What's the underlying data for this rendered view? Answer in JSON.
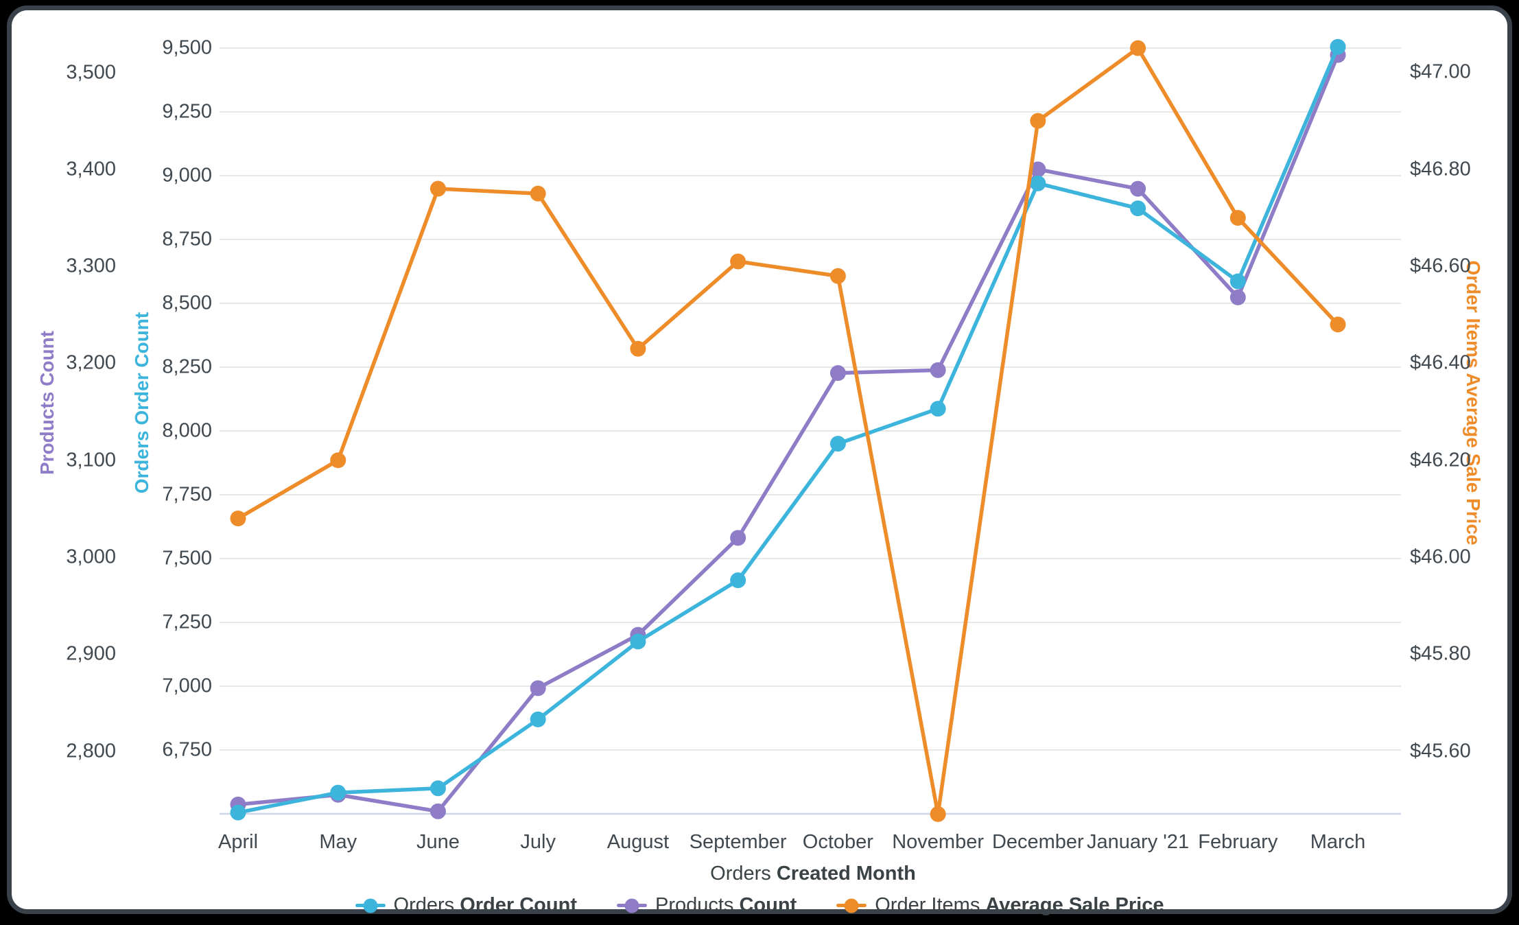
{
  "chart_data": {
    "type": "line",
    "grid": true,
    "legend_position": "bottom",
    "x": {
      "title_prefix": "Orders ",
      "title_bold": "Created Month",
      "categories": [
        "April",
        "May",
        "June",
        "July",
        "August",
        "September",
        "October",
        "November",
        "December",
        "January '21",
        "February",
        "March"
      ]
    },
    "axes": {
      "products": {
        "id": "products",
        "side": "left-outer",
        "title": "Products Count",
        "color": "#8F7CC7",
        "min": 2735.4,
        "max": 3541.4,
        "ticks": [
          {
            "label": "3,500",
            "value": 3500
          },
          {
            "label": "3,400",
            "value": 3400
          },
          {
            "label": "3,300",
            "value": 3300
          },
          {
            "label": "3,200",
            "value": 3200
          },
          {
            "label": "3,100",
            "value": 3100
          },
          {
            "label": "3,000",
            "value": 3000
          },
          {
            "label": "2,900",
            "value": 2900
          },
          {
            "label": "2,800",
            "value": 2800
          }
        ]
      },
      "orders": {
        "id": "orders",
        "side": "left-inner",
        "title": "Orders Order Count",
        "color": "#3CB4DC",
        "min": 6500,
        "max": 9562,
        "gridlines": true,
        "ticks": [
          {
            "label": "9,500",
            "value": 9500
          },
          {
            "label": "9,250",
            "value": 9250
          },
          {
            "label": "9,000",
            "value": 9000
          },
          {
            "label": "8,750",
            "value": 8750
          },
          {
            "label": "8,500",
            "value": 8500
          },
          {
            "label": "8,250",
            "value": 8250
          },
          {
            "label": "8,000",
            "value": 8000
          },
          {
            "label": "7,750",
            "value": 7750
          },
          {
            "label": "7,500",
            "value": 7500
          },
          {
            "label": "7,250",
            "value": 7250
          },
          {
            "label": "7,000",
            "value": 7000
          },
          {
            "label": "6,750",
            "value": 6750
          }
        ]
      },
      "price": {
        "id": "price",
        "side": "right",
        "title": "Order Items Average Sale Price",
        "color": "#EF8C2A",
        "min": 45.4706,
        "max": 47.0828,
        "ticks": [
          {
            "label": "$47.00",
            "value": 47.0
          },
          {
            "label": "$46.80",
            "value": 46.8
          },
          {
            "label": "$46.60",
            "value": 46.6
          },
          {
            "label": "$46.40",
            "value": 46.4
          },
          {
            "label": "$46.20",
            "value": 46.2
          },
          {
            "label": "$46.00",
            "value": 46.0
          },
          {
            "label": "$45.80",
            "value": 45.8
          },
          {
            "label": "$45.60",
            "value": 45.6
          }
        ]
      }
    },
    "series": [
      {
        "id": "orders-order-count",
        "label_prefix": "Orders ",
        "label_bold": "Order Count",
        "axis": "orders",
        "color": "#3CB4DC",
        "values": [
          6505,
          6583,
          6600,
          6870,
          7175,
          7415,
          7950,
          8087,
          8970,
          8872,
          8586,
          9505
        ]
      },
      {
        "id": "products-count",
        "label_prefix": "Products ",
        "label_bold": "Count",
        "axis": "products",
        "color": "#8F7CC7",
        "values": [
          2745,
          2755,
          2738,
          2865,
          2920,
          3020,
          3190,
          3193,
          3400,
          3380,
          3268,
          3518
        ]
      },
      {
        "id": "order-items-average-sale-price",
        "label_prefix": "Order Items ",
        "label_bold": "Average Sale Price",
        "axis": "price",
        "color": "#EF8C2A",
        "values": [
          46.08,
          46.2,
          46.76,
          46.75,
          46.43,
          46.61,
          46.58,
          45.47,
          46.9,
          47.05,
          46.7,
          46.48
        ]
      }
    ],
    "style": {
      "gridline_color": "#E8E8E8",
      "axis_line_color": "#CBD6EB",
      "tick_text_color": "#404850"
    }
  }
}
